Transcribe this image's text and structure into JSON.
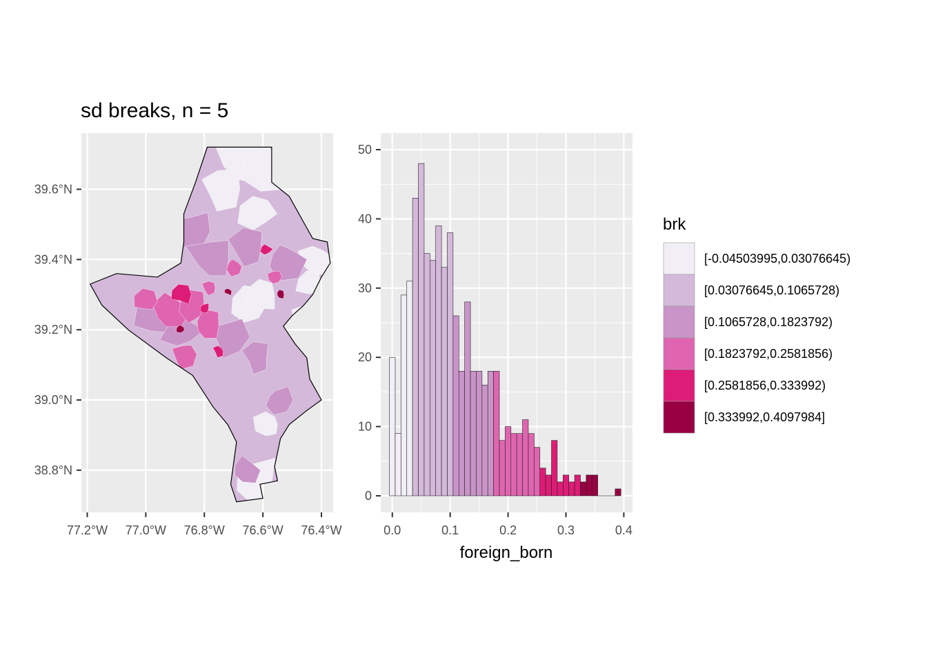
{
  "title": "sd breaks, n = 5",
  "colors": {
    "panel": "#ebebeb",
    "grid": "#ffffff",
    "classes": [
      "#f1eef6",
      "#d4b9da",
      "#c994c7",
      "#df65b0",
      "#dd1c77",
      "#980043"
    ]
  },
  "map": {
    "y_ticks": [
      "39.6°N",
      "39.4°N",
      "39.2°N",
      "39.0°N",
      "38.8°N"
    ],
    "y_tick_values": [
      39.6,
      39.4,
      39.2,
      39.0,
      38.8
    ],
    "x_ticks": [
      "77.2°W",
      "77.0°W",
      "76.8°W",
      "76.6°W",
      "76.4°W"
    ],
    "x_tick_values": [
      -77.2,
      -77.0,
      -76.8,
      -76.6,
      -76.4
    ],
    "xlim": [
      -77.22,
      -76.36
    ],
    "ylim": [
      38.68,
      39.76
    ],
    "outline_lonlat": [
      [
        -76.79,
        39.72
      ],
      [
        -76.57,
        39.72
      ],
      [
        -76.57,
        39.62
      ],
      [
        -76.51,
        39.58
      ],
      [
        -76.45,
        39.49
      ],
      [
        -76.43,
        39.46
      ],
      [
        -76.38,
        39.45
      ],
      [
        -76.37,
        39.39
      ],
      [
        -76.4,
        39.35
      ],
      [
        -76.43,
        39.3
      ],
      [
        -76.46,
        39.27
      ],
      [
        -76.5,
        39.24
      ],
      [
        -76.53,
        39.21
      ],
      [
        -76.49,
        39.16
      ],
      [
        -76.45,
        39.12
      ],
      [
        -76.44,
        39.06
      ],
      [
        -76.4,
        39.0
      ],
      [
        -76.45,
        38.97
      ],
      [
        -76.51,
        38.93
      ],
      [
        -76.54,
        38.89
      ],
      [
        -76.56,
        38.81
      ],
      [
        -76.55,
        38.77
      ],
      [
        -76.61,
        38.76
      ],
      [
        -76.6,
        38.72
      ],
      [
        -76.69,
        38.71
      ],
      [
        -76.71,
        38.76
      ],
      [
        -76.7,
        38.82
      ],
      [
        -76.69,
        38.88
      ],
      [
        -76.72,
        38.93
      ],
      [
        -76.77,
        38.98
      ],
      [
        -76.84,
        39.07
      ],
      [
        -76.93,
        39.12
      ],
      [
        -77.06,
        39.2
      ],
      [
        -77.15,
        39.27
      ],
      [
        -77.19,
        39.33
      ],
      [
        -77.1,
        39.36
      ],
      [
        -76.96,
        39.35
      ],
      [
        -76.88,
        39.39
      ],
      [
        -76.87,
        39.45
      ],
      [
        -76.87,
        39.53
      ],
      [
        -76.83,
        39.62
      ]
    ]
  },
  "legend": {
    "title": "brk",
    "labels": [
      "[-0.04503995,0.03076645)",
      "[0.03076645,0.1065728)",
      "[0.1065728,0.1823792)",
      "[0.1823792,0.2581856)",
      "[0.2581856,0.333992)",
      "[0.333992,0.4097984]"
    ]
  },
  "chart_data": {
    "type": "bar",
    "subtype": "histogram",
    "xlabel": "foreign_born",
    "ylabel": "",
    "xlim": [
      -0.02,
      0.415
    ],
    "ylim": [
      0,
      50
    ],
    "x_ticks": [
      0.0,
      0.1,
      0.2,
      0.3,
      0.4
    ],
    "x_tick_labels": [
      "0.0",
      "0.1",
      "0.2",
      "0.3",
      "0.4"
    ],
    "y_ticks": [
      0,
      10,
      20,
      30,
      40,
      50
    ],
    "y_tick_labels": [
      "0",
      "10",
      "20",
      "30",
      "40",
      "50"
    ],
    "bin_width": 0.01,
    "bin_starts": [
      -0.005,
      0.005,
      0.015,
      0.025,
      0.035,
      0.045,
      0.055,
      0.065,
      0.075,
      0.085,
      0.095,
      0.105,
      0.115,
      0.125,
      0.135,
      0.145,
      0.155,
      0.165,
      0.175,
      0.185,
      0.195,
      0.205,
      0.215,
      0.225,
      0.235,
      0.245,
      0.255,
      0.265,
      0.275,
      0.285,
      0.295,
      0.305,
      0.315,
      0.325,
      0.335,
      0.345,
      0.355,
      0.365,
      0.375,
      0.385
    ],
    "counts": [
      20,
      9,
      29,
      31,
      43,
      48,
      35,
      34,
      39,
      33,
      38,
      26,
      18,
      28,
      18,
      18,
      16,
      18,
      18,
      8,
      10,
      9,
      9,
      11,
      9,
      7,
      4,
      3,
      8,
      2,
      3,
      2,
      3,
      2,
      3,
      3,
      0,
      0,
      0,
      1
    ],
    "class_index": [
      0,
      0,
      0,
      0,
      1,
      1,
      1,
      1,
      1,
      1,
      1,
      2,
      2,
      2,
      2,
      2,
      2,
      2,
      3,
      3,
      3,
      3,
      3,
      3,
      3,
      3,
      4,
      4,
      4,
      4,
      4,
      4,
      4,
      5,
      5,
      5,
      5,
      5,
      5,
      5
    ]
  }
}
